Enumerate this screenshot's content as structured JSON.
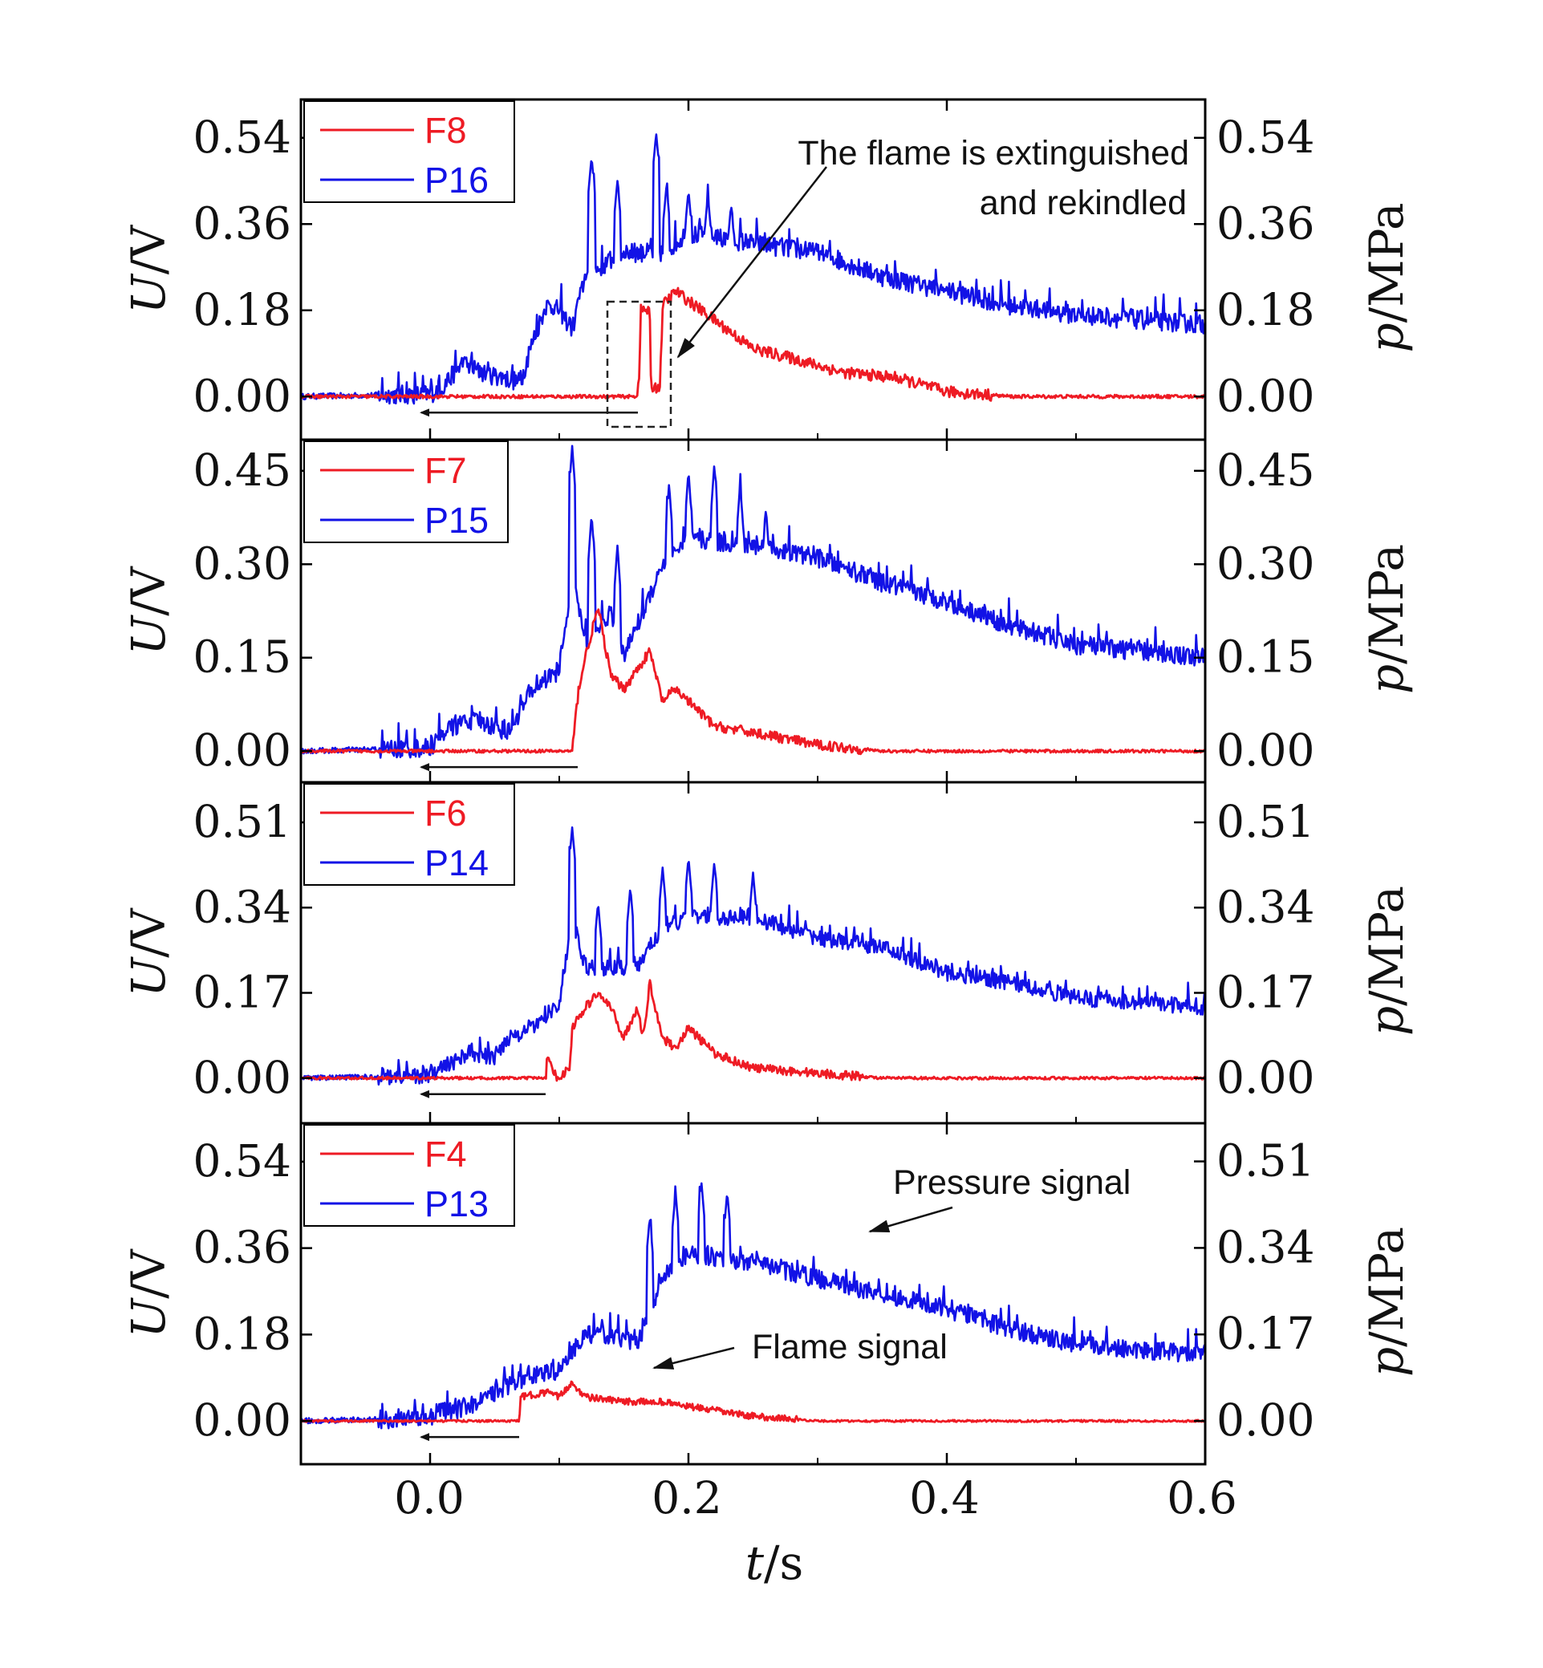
{
  "colors": {
    "flame": "#ee1b24",
    "pressure": "#1212e6",
    "axis": "#000000"
  },
  "x_axis": {
    "label_italic": "t",
    "label_rest": "/s",
    "ticks": [
      "0.0",
      "0.2",
      "0.4",
      "0.6"
    ]
  },
  "chart_data": [
    {
      "type": "line",
      "xlim": [
        -0.1,
        0.6
      ],
      "left_axis": {
        "label_italic": "U",
        "label_rest": "/V",
        "ticks": [
          "0.00",
          "0.18",
          "0.36",
          "0.54"
        ],
        "ylim": [
          -0.09,
          0.62
        ]
      },
      "right_axis": {
        "label_italic": "p",
        "label_rest": "/MPa",
        "ticks": [
          "0.00",
          "0.18",
          "0.36",
          "0.54"
        ],
        "ylim": [
          -0.09,
          0.62
        ]
      },
      "legend": {
        "position": "top-left",
        "entries": [
          "F8",
          "P16"
        ]
      },
      "series": [
        {
          "name": "F8",
          "axis": "left",
          "noise": 0.012,
          "points": [
            [
              -0.1,
              0
            ],
            [
              0.16,
              0
            ],
            [
              0.162,
              0.05
            ],
            [
              0.163,
              0.18
            ],
            [
              0.17,
              0.18
            ],
            [
              0.171,
              0.02
            ],
            [
              0.178,
              0.02
            ],
            [
              0.18,
              0.19
            ],
            [
              0.19,
              0.22
            ],
            [
              0.2,
              0.2
            ],
            [
              0.22,
              0.16
            ],
            [
              0.25,
              0.1
            ],
            [
              0.28,
              0.08
            ],
            [
              0.32,
              0.05
            ],
            [
              0.36,
              0.04
            ],
            [
              0.4,
              0.01
            ],
            [
              0.45,
              0
            ],
            [
              0.6,
              0
            ]
          ]
        },
        {
          "name": "P16",
          "axis": "right",
          "noise": 0.02,
          "points": [
            [
              -0.1,
              0
            ],
            [
              0,
              0.005
            ],
            [
              0.01,
              0.02
            ],
            [
              0.025,
              0.07
            ],
            [
              0.04,
              0.05
            ],
            [
              0.07,
              0.03
            ],
            [
              0.08,
              0.12
            ],
            [
              0.09,
              0.19
            ],
            [
              0.1,
              0.18
            ],
            [
              0.11,
              0.14
            ],
            [
              0.12,
              0.25
            ],
            [
              0.15,
              0.3
            ],
            [
              0.18,
              0.3
            ],
            [
              0.2,
              0.34
            ],
            [
              0.25,
              0.32
            ],
            [
              0.3,
              0.3
            ],
            [
              0.35,
              0.25
            ],
            [
              0.4,
              0.22
            ],
            [
              0.45,
              0.19
            ],
            [
              0.5,
              0.17
            ],
            [
              0.55,
              0.16
            ],
            [
              0.6,
              0.15
            ]
          ],
          "spikes": [
            [
              0.125,
              0.5
            ],
            [
              0.145,
              0.45
            ],
            [
              0.175,
              0.55
            ],
            [
              0.183,
              0.44
            ],
            [
              0.2,
              0.43
            ],
            [
              0.215,
              0.42
            ],
            [
              0.233,
              0.4
            ]
          ]
        }
      ]
    },
    {
      "type": "line",
      "xlim": [
        -0.1,
        0.6
      ],
      "left_axis": {
        "label_italic": "U",
        "label_rest": "/V",
        "ticks": [
          "0.00",
          "0.15",
          "0.30",
          "0.45"
        ],
        "ylim": [
          -0.05,
          0.5
        ]
      },
      "right_axis": {
        "label_italic": "p",
        "label_rest": "/MPa",
        "ticks": [
          "0.00",
          "0.15",
          "0.30",
          "0.45"
        ],
        "ylim": [
          -0.05,
          0.5
        ]
      },
      "legend": {
        "position": "top-left",
        "entries": [
          "F7",
          "P15"
        ]
      },
      "series": [
        {
          "name": "F7",
          "axis": "left",
          "noise": 0.008,
          "points": [
            [
              -0.1,
              0
            ],
            [
              0.11,
              0
            ],
            [
              0.115,
              0.1
            ],
            [
              0.12,
              0.15
            ],
            [
              0.13,
              0.23
            ],
            [
              0.14,
              0.12
            ],
            [
              0.15,
              0.1
            ],
            [
              0.16,
              0.13
            ],
            [
              0.17,
              0.16
            ],
            [
              0.18,
              0.08
            ],
            [
              0.19,
              0.1
            ],
            [
              0.2,
              0.08
            ],
            [
              0.22,
              0.04
            ],
            [
              0.25,
              0.03
            ],
            [
              0.3,
              0.01
            ],
            [
              0.35,
              0
            ],
            [
              0.6,
              0
            ]
          ]
        },
        {
          "name": "P15",
          "axis": "right",
          "noise": 0.015,
          "points": [
            [
              -0.1,
              0
            ],
            [
              0,
              0.005
            ],
            [
              0.01,
              0.03
            ],
            [
              0.03,
              0.05
            ],
            [
              0.05,
              0.04
            ],
            [
              0.06,
              0.03
            ],
            [
              0.08,
              0.1
            ],
            [
              0.1,
              0.13
            ],
            [
              0.11,
              0.28
            ],
            [
              0.12,
              0.18
            ],
            [
              0.14,
              0.22
            ],
            [
              0.15,
              0.15
            ],
            [
              0.16,
              0.2
            ],
            [
              0.18,
              0.3
            ],
            [
              0.2,
              0.34
            ],
            [
              0.25,
              0.33
            ],
            [
              0.3,
              0.31
            ],
            [
              0.35,
              0.27
            ],
            [
              0.4,
              0.24
            ],
            [
              0.45,
              0.2
            ],
            [
              0.5,
              0.17
            ],
            [
              0.55,
              0.16
            ],
            [
              0.6,
              0.15
            ]
          ],
          "spikes": [
            [
              0.11,
              0.49
            ],
            [
              0.125,
              0.38
            ],
            [
              0.145,
              0.33
            ],
            [
              0.185,
              0.43
            ],
            [
              0.2,
              0.45
            ],
            [
              0.22,
              0.46
            ],
            [
              0.24,
              0.43
            ],
            [
              0.26,
              0.39
            ]
          ]
        }
      ]
    },
    {
      "type": "line",
      "xlim": [
        -0.1,
        0.6
      ],
      "left_axis": {
        "label_italic": "U",
        "label_rest": "/V",
        "ticks": [
          "0.00",
          "0.17",
          "0.34",
          "0.51"
        ],
        "ylim": [
          -0.09,
          0.59
        ]
      },
      "right_axis": {
        "label_italic": "p",
        "label_rest": "/MPa",
        "ticks": [
          "0.00",
          "0.17",
          "0.34",
          "0.51"
        ],
        "ylim": [
          -0.09,
          0.59
        ]
      },
      "legend": {
        "position": "top-left",
        "entries": [
          "F6",
          "P14"
        ]
      },
      "series": [
        {
          "name": "F6",
          "axis": "left",
          "noise": 0.009,
          "points": [
            [
              -0.1,
              0
            ],
            [
              0.09,
              0
            ],
            [
              0.09,
              0.05
            ],
            [
              0.095,
              0.01
            ],
            [
              0.1,
              0
            ],
            [
              0.108,
              0.02
            ],
            [
              0.11,
              0.1
            ],
            [
              0.12,
              0.14
            ],
            [
              0.13,
              0.17
            ],
            [
              0.14,
              0.14
            ],
            [
              0.15,
              0.08
            ],
            [
              0.16,
              0.14
            ],
            [
              0.165,
              0.08
            ],
            [
              0.17,
              0.19
            ],
            [
              0.18,
              0.08
            ],
            [
              0.19,
              0.06
            ],
            [
              0.2,
              0.1
            ],
            [
              0.22,
              0.05
            ],
            [
              0.25,
              0.02
            ],
            [
              0.3,
              0.01
            ],
            [
              0.35,
              0
            ],
            [
              0.6,
              0
            ]
          ]
        },
        {
          "name": "P14",
          "axis": "right",
          "noise": 0.016,
          "points": [
            [
              -0.1,
              0
            ],
            [
              0,
              0.005
            ],
            [
              0.01,
              0.02
            ],
            [
              0.03,
              0.05
            ],
            [
              0.05,
              0.04
            ],
            [
              0.06,
              0.08
            ],
            [
              0.08,
              0.1
            ],
            [
              0.1,
              0.15
            ],
            [
              0.11,
              0.32
            ],
            [
              0.12,
              0.22
            ],
            [
              0.14,
              0.22
            ],
            [
              0.16,
              0.22
            ],
            [
              0.18,
              0.3
            ],
            [
              0.2,
              0.32
            ],
            [
              0.25,
              0.32
            ],
            [
              0.3,
              0.28
            ],
            [
              0.35,
              0.26
            ],
            [
              0.4,
              0.21
            ],
            [
              0.45,
              0.19
            ],
            [
              0.5,
              0.16
            ],
            [
              0.55,
              0.15
            ],
            [
              0.6,
              0.14
            ]
          ],
          "spikes": [
            [
              0.11,
              0.5
            ],
            [
              0.13,
              0.35
            ],
            [
              0.155,
              0.38
            ],
            [
              0.18,
              0.42
            ],
            [
              0.2,
              0.44
            ],
            [
              0.22,
              0.43
            ],
            [
              0.25,
              0.41
            ]
          ]
        }
      ]
    },
    {
      "type": "line",
      "xlim": [
        -0.1,
        0.6
      ],
      "left_axis": {
        "label_italic": "U",
        "label_rest": "/V",
        "ticks": [
          "0.00",
          "0.18",
          "0.36",
          "0.54"
        ],
        "ylim": [
          -0.09,
          0.62
        ]
      },
      "right_axis": {
        "label_italic": "p",
        "label_rest": "/MPa",
        "ticks": [
          "0.00",
          "0.17",
          "0.34",
          "0.51"
        ],
        "ylim": [
          -0.085,
          0.585
        ]
      },
      "legend": {
        "position": "top-left",
        "entries": [
          "F4",
          "P13"
        ]
      },
      "series": [
        {
          "name": "F4",
          "axis": "left",
          "noise": 0.007,
          "points": [
            [
              -0.1,
              0
            ],
            [
              0.069,
              0
            ],
            [
              0.07,
              0.05
            ],
            [
              0.09,
              0.06
            ],
            [
              0.1,
              0.05
            ],
            [
              0.11,
              0.08
            ],
            [
              0.12,
              0.05
            ],
            [
              0.15,
              0.04
            ],
            [
              0.18,
              0.04
            ],
            [
              0.2,
              0.03
            ],
            [
              0.25,
              0.01
            ],
            [
              0.3,
              0
            ],
            [
              0.6,
              0
            ]
          ]
        },
        {
          "name": "P13",
          "axis": "right",
          "noise": 0.018,
          "points": [
            [
              -0.1,
              0
            ],
            [
              0,
              0.005
            ],
            [
              0.005,
              0.02
            ],
            [
              0.02,
              0.02
            ],
            [
              0.04,
              0.04
            ],
            [
              0.06,
              0.07
            ],
            [
              0.08,
              0.09
            ],
            [
              0.1,
              0.1
            ],
            [
              0.12,
              0.17
            ],
            [
              0.14,
              0.17
            ],
            [
              0.16,
              0.15
            ],
            [
              0.18,
              0.28
            ],
            [
              0.2,
              0.33
            ],
            [
              0.25,
              0.31
            ],
            [
              0.3,
              0.28
            ],
            [
              0.35,
              0.25
            ],
            [
              0.4,
              0.22
            ],
            [
              0.45,
              0.18
            ],
            [
              0.5,
              0.15
            ],
            [
              0.55,
              0.14
            ],
            [
              0.6,
              0.13
            ]
          ],
          "spikes": [
            [
              0.17,
              0.4
            ],
            [
              0.19,
              0.45
            ],
            [
              0.21,
              0.47
            ],
            [
              0.23,
              0.45
            ]
          ]
        }
      ]
    }
  ],
  "annotations": {
    "extinguished_line1": "The flame is extinguished",
    "extinguished_line2": "and rekindled",
    "pressure_signal": "Pressure signal",
    "flame_signal": "Flame signal"
  }
}
